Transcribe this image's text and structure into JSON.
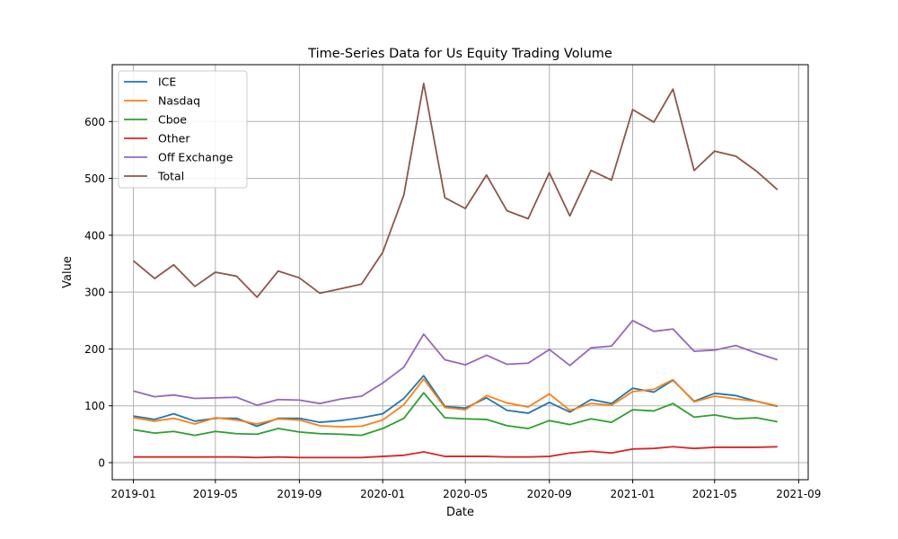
{
  "chart_data": {
    "type": "line",
    "title": "Time-Series Data for Us Equity Trading Volume",
    "xlabel": "Date",
    "ylabel": "Value",
    "xlim": [
      "2018-12-01",
      "2021-09-15"
    ],
    "ylim": [
      -30,
      700
    ],
    "grid": true,
    "legend_position": "top-left",
    "x_ticks": [
      "2019-01",
      "2019-05",
      "2019-09",
      "2020-01",
      "2020-05",
      "2020-09",
      "2021-01",
      "2021-05",
      "2021-09"
    ],
    "y_ticks": [
      0,
      100,
      200,
      300,
      400,
      500,
      600
    ],
    "x": [
      "2019-01",
      "2019-02",
      "2019-03",
      "2019-04",
      "2019-05",
      "2019-06",
      "2019-07",
      "2019-08",
      "2019-09",
      "2019-10",
      "2019-11",
      "2019-12",
      "2020-01",
      "2020-02",
      "2020-03",
      "2020-04",
      "2020-05",
      "2020-06",
      "2020-07",
      "2020-08",
      "2020-09",
      "2020-10",
      "2020-11",
      "2020-12",
      "2021-01",
      "2021-02",
      "2021-03",
      "2021-04",
      "2021-05",
      "2021-06",
      "2021-07",
      "2021-08"
    ],
    "series": [
      {
        "name": "ICE",
        "color": "#1f77b4",
        "values": [
          82,
          76,
          86,
          73,
          78,
          78,
          64,
          78,
          78,
          71,
          74,
          79,
          86,
          113,
          153,
          99,
          96,
          114,
          92,
          87,
          106,
          89,
          111,
          104,
          131,
          124,
          145,
          108,
          122,
          118,
          108,
          99
        ]
      },
      {
        "name": "Nasdaq",
        "color": "#ff7f0e",
        "values": [
          79,
          73,
          78,
          68,
          79,
          75,
          68,
          77,
          75,
          65,
          63,
          64,
          75,
          102,
          147,
          97,
          93,
          118,
          105,
          98,
          121,
          92,
          104,
          101,
          125,
          129,
          146,
          107,
          117,
          112,
          108,
          100
        ]
      },
      {
        "name": "Cboe",
        "color": "#2ca02c",
        "values": [
          58,
          52,
          55,
          48,
          55,
          51,
          50,
          60,
          54,
          51,
          50,
          48,
          60,
          78,
          123,
          79,
          77,
          76,
          65,
          60,
          74,
          67,
          77,
          71,
          93,
          91,
          104,
          80,
          84,
          77,
          79,
          72
        ]
      },
      {
        "name": "Other",
        "color": "#d62728",
        "values": [
          10,
          10,
          10,
          10,
          10,
          10,
          9,
          10,
          9,
          9,
          9,
          9,
          11,
          13,
          19,
          11,
          11,
          11,
          10,
          10,
          11,
          17,
          20,
          17,
          24,
          25,
          28,
          25,
          27,
          27,
          27,
          28
        ]
      },
      {
        "name": "Off Exchange",
        "color": "#9467bd",
        "values": [
          126,
          116,
          119,
          113,
          114,
          115,
          101,
          111,
          110,
          104,
          112,
          117,
          140,
          168,
          226,
          181,
          172,
          189,
          173,
          175,
          199,
          171,
          202,
          205,
          250,
          231,
          235,
          196,
          198,
          206,
          193,
          181
        ]
      },
      {
        "name": "Total",
        "color": "#8c564b",
        "values": [
          355,
          324,
          348,
          310,
          335,
          328,
          291,
          337,
          325,
          298,
          306,
          314,
          370,
          471,
          667,
          466,
          447,
          506,
          443,
          429,
          510,
          434,
          514,
          497,
          621,
          599,
          657,
          514,
          548,
          539,
          513,
          480
        ]
      }
    ]
  }
}
